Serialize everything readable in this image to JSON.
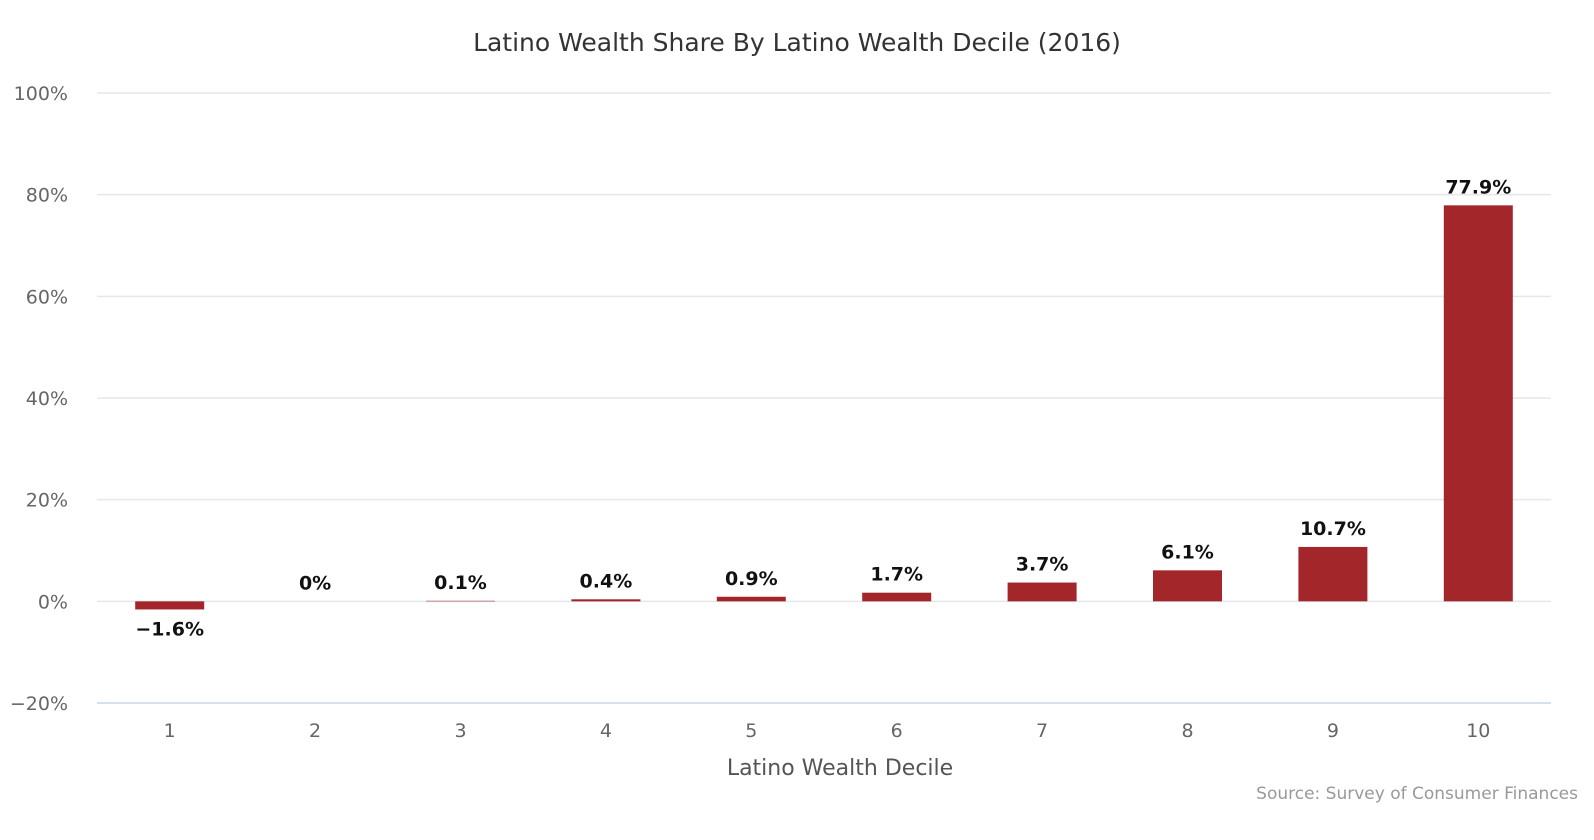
{
  "chart_data": {
    "type": "bar",
    "title": "Latino Wealth Share By Latino Wealth Decile (2016)",
    "xlabel": "Latino Wealth Decile",
    "ylabel": "",
    "categories": [
      "1",
      "2",
      "3",
      "4",
      "5",
      "6",
      "7",
      "8",
      "9",
      "10"
    ],
    "values": [
      -1.6,
      0,
      0.1,
      0.4,
      0.9,
      1.7,
      3.7,
      6.1,
      10.7,
      77.9
    ],
    "data_labels": [
      "−1.6%",
      "0%",
      "0.1%",
      "0.4%",
      "0.9%",
      "1.7%",
      "3.7%",
      "6.1%",
      "10.7%",
      "77.9%"
    ],
    "ylim": [
      -20,
      100
    ],
    "yticks": [
      100,
      80,
      60,
      40,
      20,
      0,
      -20
    ],
    "ytick_labels": [
      "100%",
      "80%",
      "60%",
      "40%",
      "20%",
      "0%",
      "−20%"
    ],
    "grid": true,
    "legend": "none",
    "bar_color": "#a3262b",
    "credit": "Source: Survey of Consumer Finances"
  }
}
